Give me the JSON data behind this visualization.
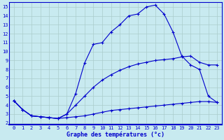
{
  "xlabel": "Graphe des températures (°c)",
  "bg_color": "#c8eaf0",
  "line_color": "#0000cc",
  "grid_color": "#aacccc",
  "xlim": [
    -0.5,
    23.5
  ],
  "ylim": [
    1.8,
    15.5
  ],
  "xticks": [
    0,
    1,
    2,
    3,
    4,
    5,
    6,
    7,
    8,
    9,
    10,
    11,
    12,
    13,
    14,
    15,
    16,
    17,
    18,
    19,
    20,
    21,
    22,
    23
  ],
  "yticks": [
    2,
    3,
    4,
    5,
    6,
    7,
    8,
    9,
    10,
    11,
    12,
    13,
    14,
    15
  ],
  "line1_x": [
    0,
    1,
    2,
    3,
    4,
    5,
    6,
    7,
    8,
    9,
    10,
    11,
    12,
    13,
    14,
    15,
    16,
    17,
    18,
    19,
    20,
    21,
    22,
    23
  ],
  "line1_y": [
    4.5,
    3.5,
    2.8,
    2.7,
    2.6,
    2.5,
    2.6,
    2.7,
    2.8,
    3.0,
    3.2,
    3.4,
    3.5,
    3.6,
    3.7,
    3.8,
    3.9,
    4.0,
    4.1,
    4.2,
    4.3,
    4.4,
    4.4,
    4.3
  ],
  "line2_x": [
    0,
    1,
    2,
    3,
    4,
    5,
    6,
    7,
    8,
    9,
    10,
    11,
    12,
    13,
    14,
    15,
    16,
    17,
    18,
    19,
    20,
    21,
    22,
    23
  ],
  "line2_y": [
    4.5,
    3.5,
    2.8,
    2.7,
    2.6,
    2.5,
    3.0,
    4.0,
    5.0,
    6.0,
    6.8,
    7.4,
    7.9,
    8.3,
    8.6,
    8.8,
    9.0,
    9.1,
    9.2,
    9.4,
    9.5,
    8.8,
    8.5,
    8.5
  ],
  "line3_x": [
    0,
    1,
    2,
    3,
    4,
    5,
    6,
    7,
    8,
    9,
    10,
    11,
    12,
    13,
    14,
    15,
    16,
    17,
    18,
    19,
    20,
    21,
    22,
    23
  ],
  "line3_y": [
    4.5,
    3.5,
    2.8,
    2.7,
    2.6,
    2.5,
    3.0,
    5.3,
    8.7,
    10.8,
    11.0,
    12.2,
    13.0,
    14.0,
    14.2,
    15.0,
    15.2,
    14.2,
    12.2,
    9.5,
    8.5,
    8.0,
    5.0,
    4.3
  ]
}
